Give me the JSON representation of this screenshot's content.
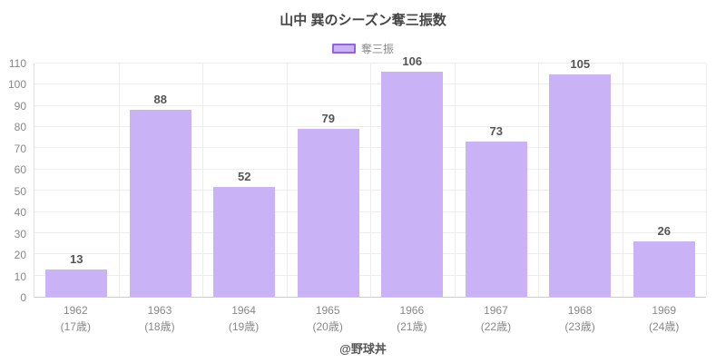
{
  "chart_data": {
    "type": "bar",
    "title": "山中 巽のシーズン奪三振数",
    "legend_label": "奪三振",
    "legend_position": "top-center",
    "categories": [
      {
        "year": "1962",
        "age": "(17歳)"
      },
      {
        "year": "1963",
        "age": "(18歳)"
      },
      {
        "year": "1964",
        "age": "(19歳)"
      },
      {
        "year": "1965",
        "age": "(20歳)"
      },
      {
        "year": "1966",
        "age": "(21歳)"
      },
      {
        "year": "1967",
        "age": "(22歳)"
      },
      {
        "year": "1968",
        "age": "(23歳)"
      },
      {
        "year": "1969",
        "age": "(24歳)"
      }
    ],
    "values": [
      13,
      88,
      52,
      79,
      106,
      73,
      105,
      26
    ],
    "xlabel": "",
    "ylabel": "",
    "ylim": [
      0,
      110
    ],
    "ytick_step": 10,
    "grid": true,
    "footer": "@野球丼",
    "colors": {
      "bar_fill": "#c9b2f5",
      "legend_border": "#9263e3",
      "value_label": "#555555",
      "axis_text": "#888888",
      "gridline": "#ededed"
    }
  }
}
